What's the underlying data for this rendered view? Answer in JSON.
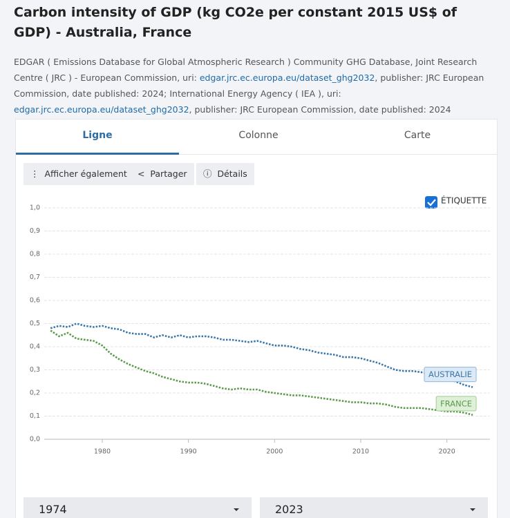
{
  "header": {
    "title": "Carbon intensity of GDP (kg CO2e per constant 2015 US$ of GDP) - Australia, France",
    "source": [
      "EDGAR ( Emissions Database for Global Atmospheric Research ) Community GHG Database, Joint Research Centre ( JRC ) - European Commission, uri: ",
      "edgar.jrc.ec.europa.eu/dataset_ghg2032",
      ", publisher: JRC European Commission, date published: 2024; International Energy Agency ( IEA ), uri: ",
      "edgar.jrc.ec.europa.eu/dataset_ghg2032",
      ", publisher: JRC European Commission, date published: 2024"
    ]
  },
  "tabs": [
    "Ligne",
    "Colonne",
    "Carte"
  ],
  "buttons": [
    "Afficher également",
    "Partager",
    "Détails"
  ],
  "checkbox": "ÉTIQUETTE",
  "range": [
    "1974",
    "2023"
  ],
  "chart_data": {
    "type": "line",
    "x": [
      1974,
      1975,
      1976,
      1977,
      1978,
      1979,
      1980,
      1981,
      1982,
      1983,
      1984,
      1985,
      1986,
      1987,
      1988,
      1989,
      1990,
      1991,
      1992,
      1993,
      1994,
      1995,
      1996,
      1997,
      1998,
      1999,
      2000,
      2001,
      2002,
      2003,
      2004,
      2005,
      2006,
      2007,
      2008,
      2009,
      2010,
      2011,
      2012,
      2013,
      2014,
      2015,
      2016,
      2017,
      2018,
      2019,
      2020,
      2021,
      2022,
      2023
    ],
    "series": [
      {
        "name": "AUSTRALIE",
        "color": "#3a76a8",
        "values": [
          0.48,
          0.49,
          0.485,
          0.5,
          0.49,
          0.485,
          0.49,
          0.48,
          0.475,
          0.46,
          0.455,
          0.455,
          0.44,
          0.45,
          0.44,
          0.45,
          0.44,
          0.445,
          0.445,
          0.44,
          0.43,
          0.43,
          0.425,
          0.42,
          0.425,
          0.415,
          0.405,
          0.405,
          0.4,
          0.39,
          0.385,
          0.375,
          0.37,
          0.365,
          0.355,
          0.355,
          0.35,
          0.34,
          0.33,
          0.315,
          0.3,
          0.295,
          0.295,
          0.29,
          0.285,
          0.275,
          0.26,
          0.25,
          0.235,
          0.225
        ]
      },
      {
        "name": "FRANCE",
        "color": "#5a9a4a",
        "values": [
          0.47,
          0.445,
          0.46,
          0.435,
          0.43,
          0.425,
          0.405,
          0.37,
          0.345,
          0.325,
          0.31,
          0.295,
          0.285,
          0.27,
          0.26,
          0.25,
          0.245,
          0.245,
          0.24,
          0.23,
          0.22,
          0.215,
          0.22,
          0.215,
          0.215,
          0.205,
          0.2,
          0.195,
          0.19,
          0.19,
          0.185,
          0.18,
          0.175,
          0.17,
          0.165,
          0.16,
          0.16,
          0.155,
          0.155,
          0.15,
          0.14,
          0.135,
          0.135,
          0.135,
          0.13,
          0.125,
          0.12,
          0.12,
          0.115,
          0.105
        ]
      }
    ],
    "xlim": [
      1973,
      2025
    ],
    "xticks": [
      1980,
      1990,
      2000,
      2010,
      2020
    ],
    "ylim": [
      0,
      1
    ],
    "yticks": [
      {
        "value": 0,
        "label": "0,0"
      },
      {
        "value": 0.1,
        "label": "0,1"
      },
      {
        "value": 0.2,
        "label": "0,2"
      },
      {
        "value": 0.3,
        "label": "0,3"
      },
      {
        "value": 0.4,
        "label": "0,4"
      },
      {
        "value": 0.5,
        "label": "0,5"
      },
      {
        "value": 0.6,
        "label": "0,6"
      },
      {
        "value": 0.7,
        "label": "0,7"
      },
      {
        "value": 0.8,
        "label": "0,8"
      },
      {
        "value": 0.9,
        "label": "0,9"
      },
      {
        "value": 1,
        "label": "1,0"
      }
    ],
    "grid": true
  }
}
